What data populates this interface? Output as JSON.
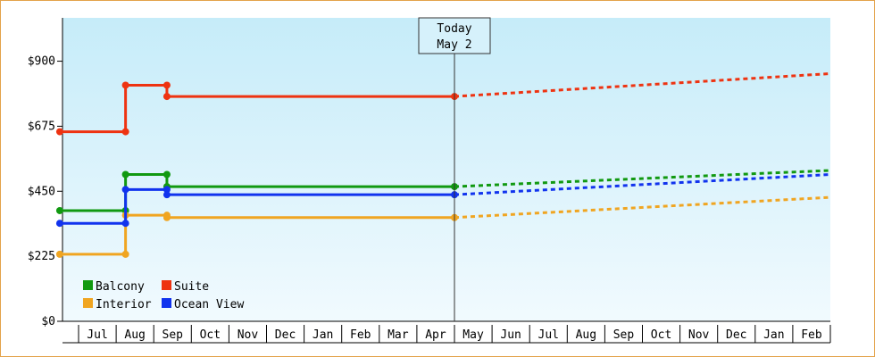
{
  "chart_data": {
    "type": "line",
    "x_labels": [
      "Jul",
      "Aug",
      "Sep",
      "Oct",
      "Nov",
      "Dec",
      "Jan",
      "Feb",
      "Mar",
      "Apr",
      "May",
      "Jun",
      "Jul",
      "Aug",
      "Sep",
      "Oct",
      "Nov",
      "Dec",
      "Jan",
      "Feb"
    ],
    "y_ticks": [
      "$0",
      "$225",
      "$450",
      "$675",
      "$900"
    ],
    "y_tick_values": [
      0,
      225,
      450,
      675,
      900
    ],
    "ylim": [
      0,
      1050
    ],
    "today": {
      "label": "Today",
      "date": "May 2",
      "x_month": 10.0
    },
    "legend": {
      "placement": "bottom-left"
    },
    "grid": false,
    "series": [
      {
        "name": "Balcony",
        "color": "#119911",
        "actual": [
          [
            -0.5,
            383
          ],
          [
            1.25,
            383
          ],
          [
            1.25,
            508
          ],
          [
            2.35,
            508
          ],
          [
            2.35,
            466
          ],
          [
            10.0,
            466
          ]
        ],
        "markers": [
          [
            -0.5,
            383
          ],
          [
            1.25,
            383
          ],
          [
            1.25,
            508
          ],
          [
            2.35,
            508
          ],
          [
            2.35,
            466
          ],
          [
            10.0,
            466
          ]
        ],
        "projected": [
          [
            10.0,
            466
          ],
          [
            20.0,
            522
          ]
        ]
      },
      {
        "name": "Suite",
        "color": "#ee3311",
        "actual": [
          [
            -0.5,
            656
          ],
          [
            1.25,
            656
          ],
          [
            1.25,
            817
          ],
          [
            2.35,
            817
          ],
          [
            2.35,
            778
          ],
          [
            10.0,
            778
          ]
        ],
        "markers": [
          [
            -0.5,
            656
          ],
          [
            1.25,
            656
          ],
          [
            1.25,
            817
          ],
          [
            2.35,
            817
          ],
          [
            2.35,
            778
          ],
          [
            10.0,
            778
          ]
        ],
        "projected": [
          [
            10.0,
            778
          ],
          [
            20.0,
            857
          ]
        ]
      },
      {
        "name": "Interior",
        "color": "#f0a521",
        "actual": [
          [
            -0.5,
            232
          ],
          [
            1.25,
            232
          ],
          [
            1.25,
            367
          ],
          [
            2.35,
            367
          ],
          [
            2.35,
            359
          ],
          [
            10.0,
            359
          ]
        ],
        "markers": [
          [
            -0.5,
            232
          ],
          [
            1.25,
            232
          ],
          [
            1.25,
            367
          ],
          [
            2.35,
            367
          ],
          [
            2.35,
            359
          ],
          [
            10.0,
            359
          ]
        ],
        "projected": [
          [
            10.0,
            359
          ],
          [
            20.0,
            429
          ]
        ]
      },
      {
        "name": "Ocean View",
        "color": "#1133ee",
        "actual": [
          [
            -0.5,
            339
          ],
          [
            1.25,
            339
          ],
          [
            1.25,
            456
          ],
          [
            2.35,
            456
          ],
          [
            2.35,
            438
          ],
          [
            10.0,
            438
          ]
        ],
        "markers": [
          [
            -0.5,
            339
          ],
          [
            1.25,
            339
          ],
          [
            1.25,
            456
          ],
          [
            2.35,
            456
          ],
          [
            2.35,
            438
          ],
          [
            10.0,
            438
          ]
        ],
        "projected": [
          [
            10.0,
            438
          ],
          [
            20.0,
            508
          ]
        ]
      }
    ]
  }
}
